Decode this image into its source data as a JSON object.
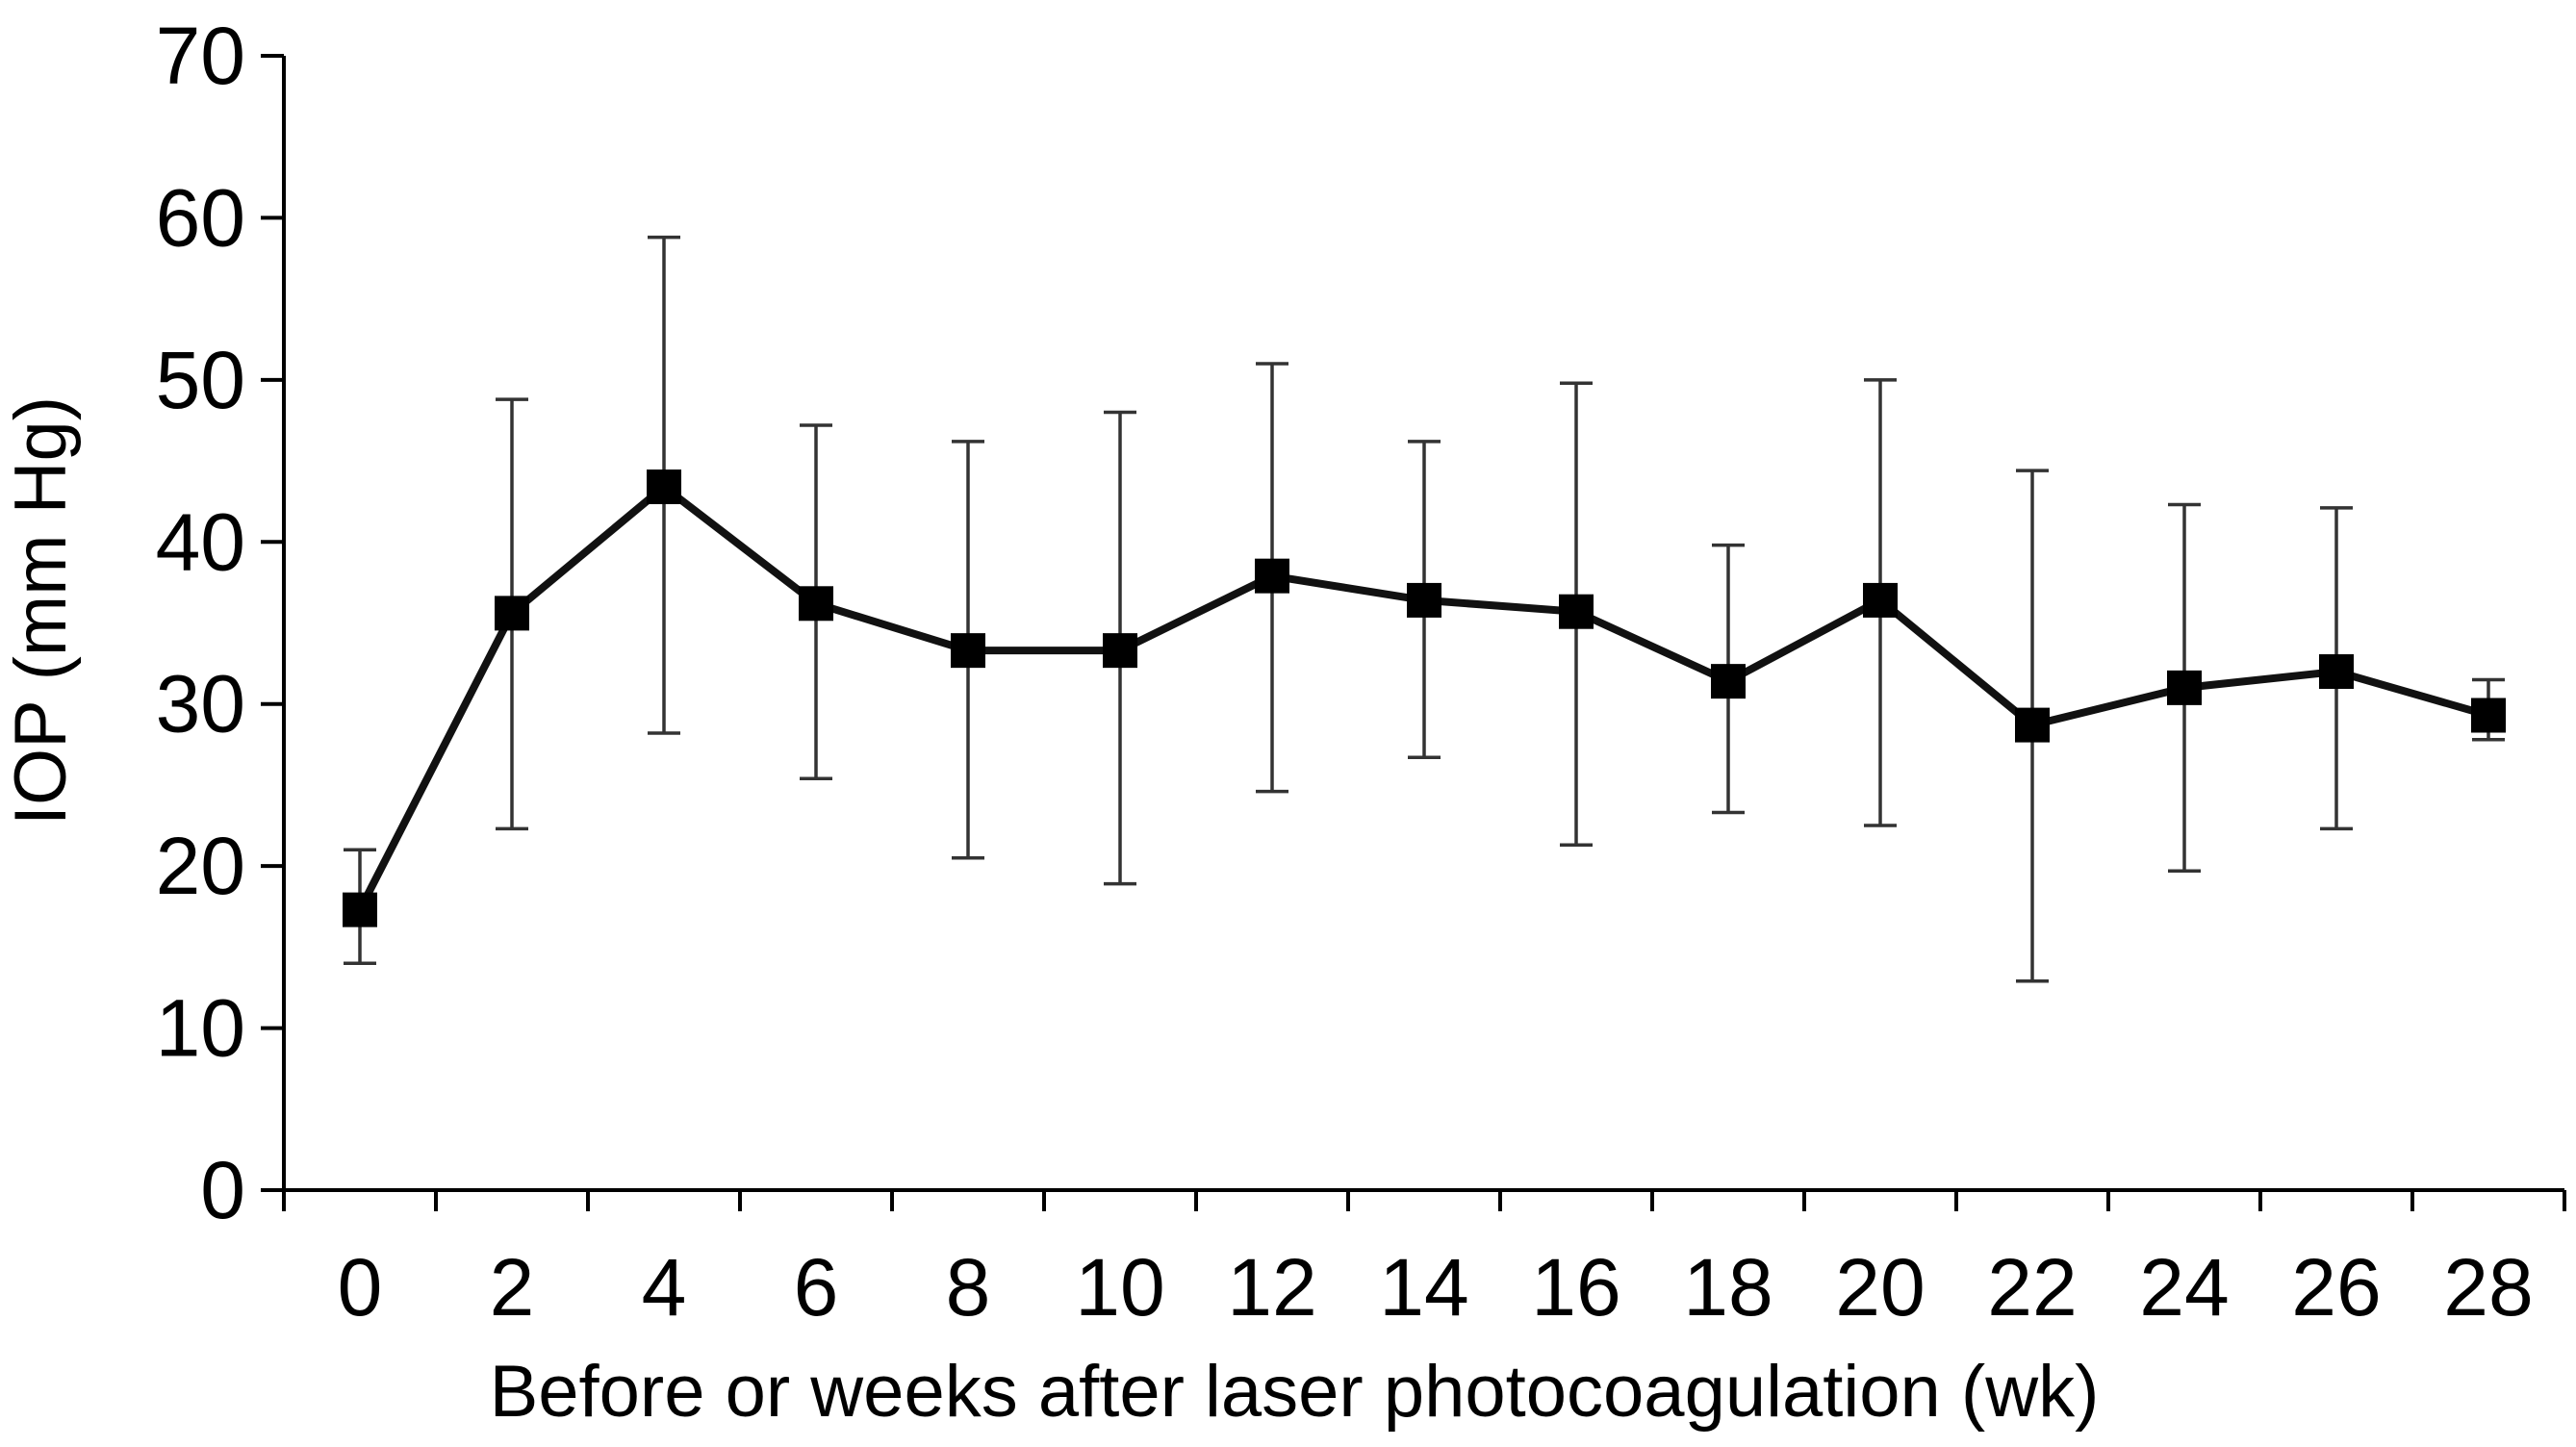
{
  "chart_data": {
    "type": "line",
    "title": "",
    "xlabel": "Before or weeks after laser photocoagulation (wk)",
    "ylabel": "IOP (mm Hg)",
    "ylim": [
      0,
      70
    ],
    "y_ticks": [
      0,
      10,
      20,
      30,
      40,
      50,
      60,
      70
    ],
    "x": [
      0,
      2,
      4,
      6,
      8,
      10,
      12,
      14,
      16,
      18,
      20,
      22,
      24,
      26,
      28
    ],
    "series": [
      {
        "values": [
          17.3,
          35.6,
          43.4,
          36.2,
          33.3,
          33.3,
          37.9,
          36.4,
          35.7,
          31.4,
          36.4,
          28.7,
          31.0,
          32.0,
          29.3
        ],
        "error_upper": [
          21.0,
          48.8,
          58.8,
          47.2,
          46.2,
          48.0,
          51.0,
          46.2,
          49.8,
          39.8,
          50.0,
          44.4,
          42.3,
          42.1,
          31.5
        ],
        "error_lower": [
          14.0,
          22.3,
          28.2,
          25.4,
          20.5,
          18.9,
          24.6,
          26.7,
          21.3,
          23.3,
          22.5,
          12.9,
          19.7,
          22.3,
          27.8
        ]
      }
    ],
    "grid": false,
    "legend": "none",
    "colors": {
      "line": "#111111",
      "marker": "#000000",
      "axis": "#000000"
    }
  }
}
